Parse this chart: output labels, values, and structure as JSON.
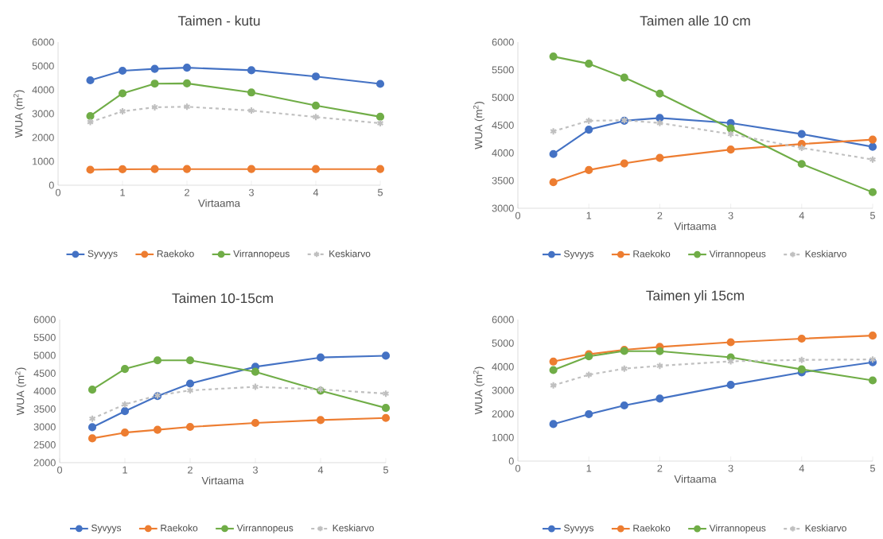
{
  "chart_data": [
    {
      "type": "line",
      "title": "Taimen - kutu",
      "xlabel": "Virtaama",
      "ylabel": "WUA (m$^{2}$)",
      "x": [
        0.5,
        1,
        1.5,
        2,
        3,
        4,
        5
      ],
      "xlim": [
        0,
        5
      ],
      "xticks": [
        0,
        1,
        2,
        3,
        4,
        5
      ],
      "ylim": [
        0,
        6000
      ],
      "yticks": [
        0,
        1000,
        2000,
        3000,
        4000,
        5000,
        6000
      ],
      "grid": false,
      "legend": "bottom",
      "series": [
        {
          "name": "Syvyys",
          "color": "#4472c4",
          "marker": "circle",
          "line_style": "solid",
          "values": [
            4400,
            4800,
            4880,
            4930,
            4820,
            4560,
            4250
          ]
        },
        {
          "name": "Raekoko",
          "color": "#ed7d31",
          "marker": "circle",
          "line_style": "solid",
          "values": [
            650,
            670,
            680,
            680,
            680,
            680,
            680
          ]
        },
        {
          "name": "Virrannopeus",
          "color": "#70ad47",
          "marker": "circle",
          "line_style": "solid",
          "values": [
            2900,
            3850,
            4260,
            4270,
            3890,
            3340,
            2870
          ]
        },
        {
          "name": "Keskiarvo",
          "color": "#c0c0c0",
          "marker": "cross",
          "line_style": "dashed",
          "values": [
            2650,
            3100,
            3270,
            3290,
            3130,
            2860,
            2600
          ]
        }
      ]
    },
    {
      "type": "line",
      "title": "Taimen alle 10 cm",
      "xlabel": "Virtaama",
      "ylabel": "WUA (m$^{2}$)",
      "x": [
        0.5,
        1,
        1.5,
        2,
        3,
        4,
        5
      ],
      "xlim": [
        0,
        5
      ],
      "xticks": [
        0,
        1,
        2,
        3,
        4,
        5
      ],
      "ylim": [
        3000,
        6000
      ],
      "yticks": [
        3000,
        3500,
        4000,
        4500,
        5000,
        5500,
        6000
      ],
      "grid": false,
      "legend": "bottom",
      "series": [
        {
          "name": "Syvyys",
          "color": "#4472c4",
          "marker": "circle",
          "line_style": "solid",
          "values": [
            3980,
            4420,
            4580,
            4630,
            4540,
            4340,
            4110
          ]
        },
        {
          "name": "Raekoko",
          "color": "#ed7d31",
          "marker": "circle",
          "line_style": "solid",
          "values": [
            3470,
            3690,
            3810,
            3910,
            4060,
            4160,
            4240
          ]
        },
        {
          "name": "Virrannopeus",
          "color": "#70ad47",
          "marker": "circle",
          "line_style": "solid",
          "values": [
            5740,
            5610,
            5360,
            5070,
            4440,
            3800,
            3290
          ]
        },
        {
          "name": "Keskiarvo",
          "color": "#c0c0c0",
          "marker": "cross",
          "line_style": "dashed",
          "values": [
            4390,
            4580,
            4590,
            4540,
            4340,
            4090,
            3880
          ]
        }
      ]
    },
    {
      "type": "line",
      "title": "Taimen 10-15cm",
      "xlabel": "Virtaama",
      "ylabel": "WUA (m$^{2}$)",
      "x": [
        0.5,
        1,
        1.5,
        2,
        3,
        4,
        5
      ],
      "xlim": [
        0,
        5
      ],
      "xticks": [
        0,
        1,
        2,
        3,
        4,
        5
      ],
      "ylim": [
        2000,
        6000
      ],
      "yticks": [
        2000,
        2500,
        3000,
        3500,
        4000,
        4500,
        5000,
        5500,
        6000
      ],
      "grid": false,
      "legend": "bottom",
      "series": [
        {
          "name": "Syvyys",
          "color": "#4472c4",
          "marker": "circle",
          "line_style": "solid",
          "values": [
            2990,
            3440,
            3860,
            4210,
            4680,
            4940,
            4990
          ]
        },
        {
          "name": "Raekoko",
          "color": "#ed7d31",
          "marker": "circle",
          "line_style": "solid",
          "values": [
            2680,
            2840,
            2920,
            3000,
            3110,
            3190,
            3250
          ]
        },
        {
          "name": "Virrannopeus",
          "color": "#70ad47",
          "marker": "circle",
          "line_style": "solid",
          "values": [
            4040,
            4620,
            4860,
            4860,
            4540,
            4010,
            3530
          ]
        },
        {
          "name": "Keskiarvo",
          "color": "#c0c0c0",
          "marker": "cross",
          "line_style": "dashed",
          "values": [
            3230,
            3630,
            3880,
            4020,
            4120,
            4050,
            3930
          ]
        }
      ]
    },
    {
      "type": "line",
      "title": "Taimen yli 15cm",
      "xlabel": "Virtaama",
      "ylabel": "WUA (m$^{2}$)",
      "x": [
        0.5,
        1,
        1.5,
        2,
        3,
        4,
        5
      ],
      "xlim": [
        0,
        5
      ],
      "xticks": [
        0,
        1,
        2,
        3,
        4,
        5
      ],
      "ylim": [
        0,
        6000
      ],
      "yticks": [
        0,
        1000,
        2000,
        3000,
        4000,
        5000,
        6000
      ],
      "grid": false,
      "legend": "bottom",
      "series": [
        {
          "name": "Syvyys",
          "color": "#4472c4",
          "marker": "circle",
          "line_style": "solid",
          "values": [
            1570,
            1990,
            2360,
            2650,
            3230,
            3760,
            4190
          ]
        },
        {
          "name": "Raekoko",
          "color": "#ed7d31",
          "marker": "circle",
          "line_style": "solid",
          "values": [
            4220,
            4530,
            4720,
            4840,
            5040,
            5190,
            5320
          ]
        },
        {
          "name": "Virrannopeus",
          "color": "#70ad47",
          "marker": "circle",
          "line_style": "solid",
          "values": [
            3860,
            4440,
            4670,
            4660,
            4400,
            3890,
            3420
          ]
        },
        {
          "name": "Keskiarvo",
          "color": "#c0c0c0",
          "marker": "cross",
          "line_style": "dashed",
          "values": [
            3210,
            3660,
            3920,
            4040,
            4230,
            4290,
            4310
          ]
        }
      ]
    }
  ]
}
